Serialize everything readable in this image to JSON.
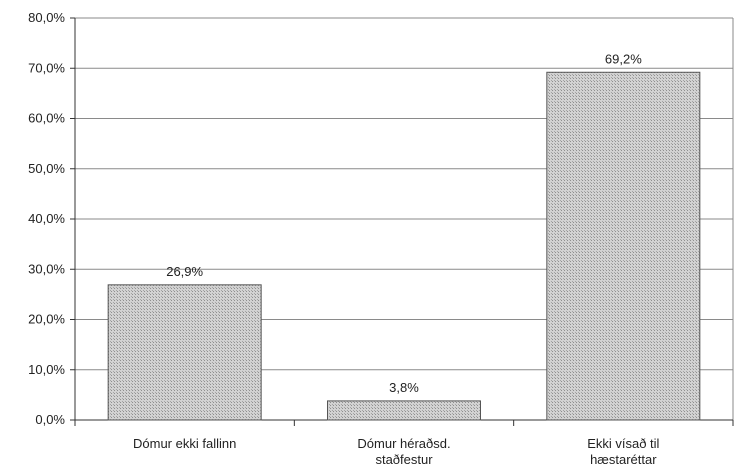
{
  "chart_data": {
    "type": "bar",
    "title": "",
    "xlabel": "",
    "ylabel": "",
    "categories": [
      [
        "Dómur ekki fallinn"
      ],
      [
        "Dómur héraðsd.",
        "staðfestur"
      ],
      [
        "Ekki vísað til",
        "hæstaréttar"
      ]
    ],
    "values": [
      26.9,
      3.8,
      69.2
    ],
    "value_labels": [
      "26,9%",
      "3,8%",
      "69,2%"
    ],
    "ylim": [
      0,
      80
    ],
    "yticks": [
      0,
      10,
      20,
      30,
      40,
      50,
      60,
      70,
      80
    ],
    "ytick_labels": [
      "0,0%",
      "10,0%",
      "20,0%",
      "30,0%",
      "40,0%",
      "50,0%",
      "60,0%",
      "70,0%",
      "80,0%"
    ],
    "grid": true,
    "legend": "none",
    "colors": {
      "bar_fill": "#c9c9c9",
      "bar_stroke": "#555555",
      "grid": "#8a8a8a",
      "axis": "#333333"
    }
  }
}
